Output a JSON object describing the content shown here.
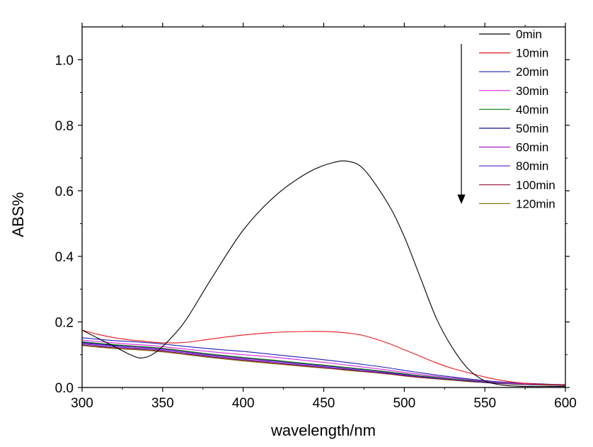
{
  "chart_data": {
    "type": "line",
    "xlabel": "wavelength/nm",
    "ylabel": "ABS%",
    "xlim": [
      300,
      600
    ],
    "ylim": [
      0,
      1.1
    ],
    "x_ticks": [
      300,
      350,
      400,
      450,
      500,
      550,
      600
    ],
    "x_tick_labels": [
      "300",
      "350",
      "400",
      "450",
      "500",
      "550",
      "600"
    ],
    "y_ticks": [
      0.0,
      0.2,
      0.4,
      0.6,
      0.8,
      1.0
    ],
    "y_tick_labels": [
      "0.0",
      "0.2",
      "0.4",
      "0.6",
      "0.8",
      "1.0"
    ],
    "grid": false,
    "legend_position": "top-right",
    "annotation": "downward arrow beside legend",
    "x": [
      300,
      310,
      320,
      330,
      337,
      345,
      355,
      365,
      380,
      400,
      420,
      440,
      455,
      465,
      475,
      490,
      500,
      510,
      520,
      530,
      540,
      550,
      560,
      570,
      580,
      590,
      600
    ],
    "series": [
      {
        "name": "0min",
        "color": "#000000",
        "values": [
          0.175,
          0.15,
          0.125,
          0.1,
          0.09,
          0.105,
          0.15,
          0.21,
          0.33,
          0.48,
          0.585,
          0.655,
          0.685,
          0.69,
          0.665,
          0.56,
          0.46,
          0.335,
          0.21,
          0.12,
          0.055,
          0.02,
          0.008,
          0.004,
          0.003,
          0.003,
          0.003
        ]
      },
      {
        "name": "10min",
        "color": "#e8151b",
        "values": [
          0.175,
          0.162,
          0.152,
          0.145,
          0.142,
          0.138,
          0.136,
          0.138,
          0.148,
          0.16,
          0.168,
          0.171,
          0.17,
          0.166,
          0.158,
          0.135,
          0.115,
          0.095,
          0.075,
          0.058,
          0.045,
          0.032,
          0.022,
          0.015,
          0.011,
          0.009,
          0.008
        ]
      },
      {
        "name": "20min",
        "color": "#1f1fb4",
        "values": [
          0.152,
          0.147,
          0.143,
          0.14,
          0.138,
          0.135,
          0.13,
          0.125,
          0.118,
          0.11,
          0.1,
          0.09,
          0.082,
          0.076,
          0.07,
          0.06,
          0.052,
          0.045,
          0.038,
          0.032,
          0.026,
          0.021,
          0.017,
          0.014,
          0.012,
          0.01,
          0.009
        ]
      },
      {
        "name": "30min",
        "color": "#e020e0",
        "values": [
          0.145,
          0.14,
          0.136,
          0.132,
          0.13,
          0.127,
          0.122,
          0.117,
          0.109,
          0.1,
          0.092,
          0.082,
          0.074,
          0.068,
          0.062,
          0.053,
          0.046,
          0.04,
          0.034,
          0.029,
          0.024,
          0.019,
          0.015,
          0.012,
          0.01,
          0.009,
          0.008
        ]
      },
      {
        "name": "40min",
        "color": "#1a8c1a",
        "values": [
          0.14,
          0.135,
          0.131,
          0.127,
          0.125,
          0.122,
          0.117,
          0.111,
          0.102,
          0.092,
          0.083,
          0.073,
          0.066,
          0.061,
          0.056,
          0.048,
          0.042,
          0.036,
          0.031,
          0.026,
          0.022,
          0.018,
          0.014,
          0.011,
          0.009,
          0.008,
          0.007
        ]
      },
      {
        "name": "50min",
        "color": "#0a0a8c",
        "values": [
          0.138,
          0.133,
          0.129,
          0.126,
          0.124,
          0.121,
          0.116,
          0.11,
          0.101,
          0.091,
          0.082,
          0.072,
          0.065,
          0.06,
          0.055,
          0.047,
          0.041,
          0.035,
          0.03,
          0.026,
          0.021,
          0.017,
          0.013,
          0.011,
          0.009,
          0.008,
          0.007
        ]
      },
      {
        "name": "60min",
        "color": "#a020c8",
        "values": [
          0.136,
          0.131,
          0.127,
          0.124,
          0.122,
          0.119,
          0.114,
          0.108,
          0.099,
          0.089,
          0.08,
          0.071,
          0.064,
          0.059,
          0.054,
          0.046,
          0.04,
          0.034,
          0.029,
          0.025,
          0.021,
          0.017,
          0.013,
          0.01,
          0.009,
          0.008,
          0.007
        ]
      },
      {
        "name": "80min",
        "color": "#5a1ad2",
        "values": [
          0.133,
          0.128,
          0.124,
          0.121,
          0.119,
          0.116,
          0.111,
          0.105,
          0.096,
          0.086,
          0.077,
          0.068,
          0.061,
          0.056,
          0.051,
          0.044,
          0.038,
          0.033,
          0.028,
          0.024,
          0.02,
          0.016,
          0.013,
          0.01,
          0.008,
          0.007,
          0.006
        ]
      },
      {
        "name": "100min",
        "color": "#8b0a2a",
        "values": [
          0.13,
          0.125,
          0.121,
          0.118,
          0.116,
          0.113,
          0.108,
          0.102,
          0.093,
          0.083,
          0.074,
          0.065,
          0.058,
          0.054,
          0.049,
          0.042,
          0.036,
          0.031,
          0.027,
          0.023,
          0.019,
          0.015,
          0.012,
          0.01,
          0.008,
          0.007,
          0.006
        ]
      },
      {
        "name": "120min",
        "color": "#7a7a10",
        "values": [
          0.128,
          0.123,
          0.119,
          0.116,
          0.114,
          0.111,
          0.106,
          0.1,
          0.091,
          0.081,
          0.072,
          0.063,
          0.057,
          0.052,
          0.048,
          0.041,
          0.035,
          0.03,
          0.026,
          0.022,
          0.018,
          0.015,
          0.012,
          0.009,
          0.008,
          0.007,
          0.006
        ]
      }
    ]
  }
}
